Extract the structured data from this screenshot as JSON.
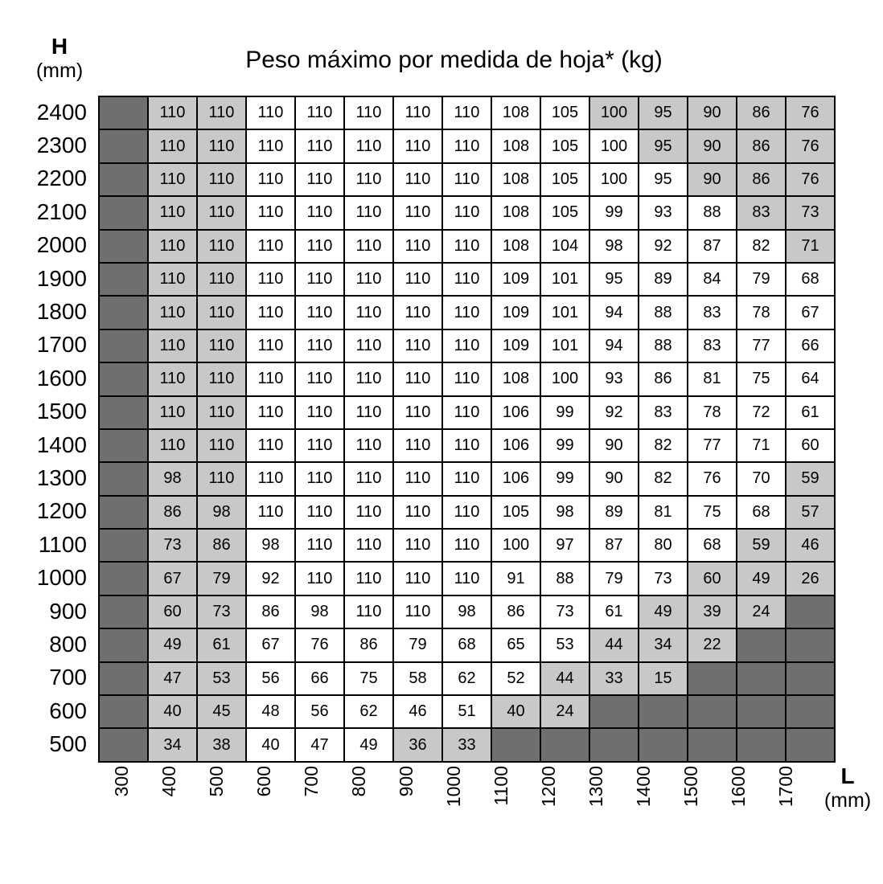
{
  "title": "Peso máximo por medida de hoja* (kg)",
  "h_axis": {
    "label": "H",
    "unit": "(mm)"
  },
  "l_axis": {
    "label": "L",
    "unit": "(mm)"
  },
  "colors": {
    "grid_line": "#000000",
    "cell_normal": "#ffffff",
    "cell_highlight": "#c8c8c8",
    "cell_unavailable": "#6f6f6f"
  },
  "chart_data": {
    "type": "heatmap",
    "title": "Peso máximo por medida de hoja* (kg)",
    "xlabel": "L (mm)",
    "ylabel": "H (mm)",
    "legend_note": "values = max leaf weight in kg; null = size not available; shading d=dark unavailable, g=gray highlighted, w=white",
    "x": [
      300,
      400,
      500,
      600,
      700,
      800,
      900,
      1000,
      1100,
      1200,
      1300,
      1400,
      1500,
      1600,
      1700
    ],
    "y": [
      2400,
      2300,
      2200,
      2100,
      2000,
      1900,
      1800,
      1700,
      1600,
      1500,
      1400,
      1300,
      1200,
      1100,
      1000,
      900,
      800,
      700,
      600,
      500
    ],
    "values": [
      [
        null,
        110,
        110,
        110,
        110,
        110,
        110,
        110,
        108,
        105,
        100,
        95,
        90,
        86,
        76
      ],
      [
        null,
        110,
        110,
        110,
        110,
        110,
        110,
        110,
        108,
        105,
        100,
        95,
        90,
        86,
        76
      ],
      [
        null,
        110,
        110,
        110,
        110,
        110,
        110,
        110,
        108,
        105,
        100,
        95,
        90,
        86,
        76
      ],
      [
        null,
        110,
        110,
        110,
        110,
        110,
        110,
        110,
        108,
        105,
        99,
        93,
        88,
        83,
        73
      ],
      [
        null,
        110,
        110,
        110,
        110,
        110,
        110,
        110,
        108,
        104,
        98,
        92,
        87,
        82,
        71
      ],
      [
        null,
        110,
        110,
        110,
        110,
        110,
        110,
        110,
        109,
        101,
        95,
        89,
        84,
        79,
        68
      ],
      [
        null,
        110,
        110,
        110,
        110,
        110,
        110,
        110,
        109,
        101,
        94,
        88,
        83,
        78,
        67
      ],
      [
        null,
        110,
        110,
        110,
        110,
        110,
        110,
        110,
        109,
        101,
        94,
        88,
        83,
        77,
        66
      ],
      [
        null,
        110,
        110,
        110,
        110,
        110,
        110,
        110,
        108,
        100,
        93,
        86,
        81,
        75,
        64
      ],
      [
        null,
        110,
        110,
        110,
        110,
        110,
        110,
        110,
        106,
        99,
        92,
        83,
        78,
        72,
        61
      ],
      [
        null,
        110,
        110,
        110,
        110,
        110,
        110,
        110,
        106,
        99,
        90,
        82,
        77,
        71,
        60
      ],
      [
        null,
        98,
        110,
        110,
        110,
        110,
        110,
        110,
        106,
        99,
        90,
        82,
        76,
        70,
        59
      ],
      [
        null,
        86,
        98,
        110,
        110,
        110,
        110,
        110,
        105,
        98,
        89,
        81,
        75,
        68,
        57
      ],
      [
        null,
        73,
        86,
        98,
        110,
        110,
        110,
        110,
        100,
        97,
        87,
        80,
        68,
        59,
        46
      ],
      [
        null,
        67,
        79,
        92,
        110,
        110,
        110,
        110,
        91,
        88,
        79,
        73,
        60,
        49,
        26
      ],
      [
        null,
        60,
        73,
        86,
        98,
        110,
        110,
        98,
        86,
        73,
        61,
        49,
        39,
        24,
        null
      ],
      [
        null,
        49,
        61,
        67,
        76,
        86,
        79,
        68,
        65,
        53,
        44,
        34,
        22,
        null,
        null
      ],
      [
        null,
        47,
        53,
        56,
        66,
        75,
        58,
        62,
        52,
        44,
        33,
        15,
        null,
        null,
        null
      ],
      [
        null,
        40,
        45,
        48,
        56,
        62,
        46,
        51,
        40,
        24,
        null,
        null,
        null,
        null,
        null
      ],
      [
        null,
        34,
        38,
        40,
        47,
        49,
        36,
        33,
        null,
        null,
        null,
        null,
        null,
        null,
        null
      ]
    ],
    "shading": [
      "dggwwwwwwwggggg",
      "dggwwwwwwwwgggg",
      "dggwwwwwwwwwggg",
      "dggwwwwwwwwwwgg",
      "dggwwwwwwwwwwwg",
      "dggwwwwwwwwwwww",
      "dggwwwwwwwwwwww",
      "dggwwwwwwwwwwww",
      "dggwwwwwwwwwwww",
      "dggwwwwwwwwwwww",
      "dggwwwwwwwwwwww",
      "dggwwwwwwwwwwwg",
      "dggwwwwwwwwwwwg",
      "dggwwwwwwwwwwgg",
      "dggwwwwwwwwwggg",
      "dggwwwwwwwwgggd",
      "dggwwwwwwwgggdd",
      "dggwwwwwwgggddd",
      "dggwwwwwggddddd",
      "dggwwwggddddddd"
    ]
  }
}
